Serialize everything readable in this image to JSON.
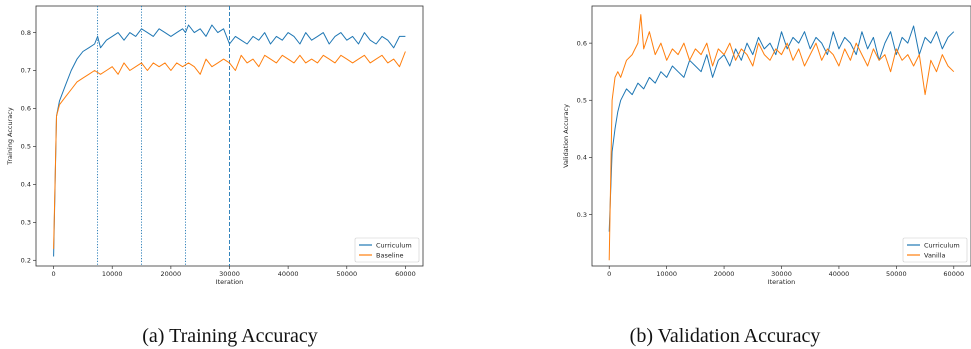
{
  "captions": [
    "(a) Training Accuracy",
    "(b) Validation Accuracy"
  ],
  "colors": {
    "series1": "#1f77b4",
    "series2": "#ff7f0e",
    "vline": "#1f77b4"
  },
  "chart_data": [
    {
      "type": "line",
      "title": "",
      "xlabel": "Iteration",
      "ylabel": "Training Accuracy",
      "xlim": [
        -3000,
        63000
      ],
      "ylim": [
        0.185,
        0.87
      ],
      "xticks": [
        0,
        10000,
        20000,
        30000,
        40000,
        50000,
        60000
      ],
      "yticks": [
        0.2,
        0.3,
        0.4,
        0.5,
        0.6,
        0.7,
        0.8
      ],
      "vlines": [
        7500,
        15000,
        22500,
        30000
      ],
      "grid": false,
      "legend_position": "bottom-right",
      "series": [
        {
          "name": "Curriculum",
          "color": "#1f77b4",
          "x": [
            0,
            500,
            1000,
            2000,
            3000,
            4000,
            5000,
            6000,
            7000,
            7500,
            8000,
            9000,
            10000,
            11000,
            12000,
            13000,
            14000,
            15000,
            16000,
            17000,
            18000,
            19000,
            20000,
            21000,
            22000,
            22500,
            23000,
            24000,
            25000,
            26000,
            27000,
            28000,
            29000,
            30000,
            31000,
            32000,
            33000,
            34000,
            35000,
            36000,
            37000,
            38000,
            39000,
            40000,
            41000,
            42000,
            43000,
            44000,
            45000,
            46000,
            47000,
            48000,
            49000,
            50000,
            51000,
            52000,
            53000,
            54000,
            55000,
            56000,
            57000,
            58000,
            59000,
            60000
          ],
          "y": [
            0.21,
            0.58,
            0.62,
            0.66,
            0.7,
            0.73,
            0.75,
            0.76,
            0.77,
            0.79,
            0.76,
            0.78,
            0.79,
            0.8,
            0.78,
            0.8,
            0.79,
            0.81,
            0.8,
            0.79,
            0.81,
            0.8,
            0.79,
            0.8,
            0.81,
            0.8,
            0.82,
            0.8,
            0.81,
            0.79,
            0.82,
            0.8,
            0.81,
            0.77,
            0.79,
            0.78,
            0.77,
            0.79,
            0.78,
            0.8,
            0.77,
            0.79,
            0.78,
            0.8,
            0.79,
            0.77,
            0.8,
            0.78,
            0.79,
            0.8,
            0.77,
            0.79,
            0.8,
            0.78,
            0.79,
            0.77,
            0.8,
            0.78,
            0.77,
            0.79,
            0.78,
            0.76,
            0.79,
            0.79
          ]
        },
        {
          "name": "Baseline",
          "color": "#ff7f0e",
          "x": [
            0,
            500,
            1000,
            2000,
            3000,
            4000,
            5000,
            6000,
            7000,
            8000,
            9000,
            10000,
            11000,
            12000,
            13000,
            14000,
            15000,
            16000,
            17000,
            18000,
            19000,
            20000,
            21000,
            22000,
            23000,
            24000,
            25000,
            26000,
            27000,
            28000,
            29000,
            30000,
            31000,
            32000,
            33000,
            34000,
            35000,
            36000,
            37000,
            38000,
            39000,
            40000,
            41000,
            42000,
            43000,
            44000,
            45000,
            46000,
            47000,
            48000,
            49000,
            50000,
            51000,
            52000,
            53000,
            54000,
            55000,
            56000,
            57000,
            58000,
            59000,
            60000
          ],
          "y": [
            0.23,
            0.58,
            0.61,
            0.63,
            0.65,
            0.67,
            0.68,
            0.69,
            0.7,
            0.69,
            0.7,
            0.71,
            0.69,
            0.72,
            0.7,
            0.71,
            0.72,
            0.7,
            0.72,
            0.71,
            0.72,
            0.7,
            0.72,
            0.71,
            0.72,
            0.71,
            0.69,
            0.73,
            0.71,
            0.72,
            0.73,
            0.72,
            0.7,
            0.74,
            0.72,
            0.73,
            0.71,
            0.74,
            0.73,
            0.72,
            0.74,
            0.73,
            0.72,
            0.74,
            0.72,
            0.73,
            0.72,
            0.74,
            0.73,
            0.72,
            0.74,
            0.73,
            0.72,
            0.73,
            0.74,
            0.72,
            0.73,
            0.74,
            0.72,
            0.73,
            0.71,
            0.75
          ]
        }
      ]
    },
    {
      "type": "line",
      "title": "",
      "xlabel": "Iteration",
      "ylabel": "Validation Accuracy",
      "xlim": [
        -3000,
        63000
      ],
      "ylim": [
        0.21,
        0.665
      ],
      "xticks": [
        0,
        10000,
        20000,
        30000,
        40000,
        50000,
        60000
      ],
      "yticks": [
        0.3,
        0.4,
        0.5,
        0.6
      ],
      "vlines": [],
      "grid": false,
      "legend_position": "bottom-right",
      "series": [
        {
          "name": "Curriculum",
          "color": "#1f77b4",
          "x": [
            0,
            500,
            1000,
            1500,
            2000,
            3000,
            4000,
            5000,
            6000,
            7000,
            8000,
            9000,
            10000,
            11000,
            12000,
            13000,
            14000,
            15000,
            16000,
            17000,
            18000,
            19000,
            20000,
            21000,
            22000,
            23000,
            24000,
            25000,
            26000,
            27000,
            28000,
            29000,
            30000,
            31000,
            32000,
            33000,
            34000,
            35000,
            36000,
            37000,
            38000,
            39000,
            40000,
            41000,
            42000,
            43000,
            44000,
            45000,
            46000,
            47000,
            48000,
            49000,
            50000,
            51000,
            52000,
            53000,
            54000,
            55000,
            56000,
            57000,
            58000,
            59000,
            60000
          ],
          "y": [
            0.27,
            0.41,
            0.45,
            0.48,
            0.5,
            0.52,
            0.51,
            0.53,
            0.52,
            0.54,
            0.53,
            0.55,
            0.54,
            0.56,
            0.55,
            0.54,
            0.57,
            0.56,
            0.55,
            0.58,
            0.54,
            0.57,
            0.58,
            0.56,
            0.59,
            0.57,
            0.6,
            0.58,
            0.61,
            0.59,
            0.6,
            0.58,
            0.62,
            0.59,
            0.61,
            0.6,
            0.62,
            0.59,
            0.61,
            0.6,
            0.58,
            0.62,
            0.59,
            0.61,
            0.6,
            0.58,
            0.62,
            0.59,
            0.61,
            0.57,
            0.6,
            0.62,
            0.58,
            0.61,
            0.6,
            0.63,
            0.58,
            0.61,
            0.6,
            0.62,
            0.59,
            0.61,
            0.62
          ]
        },
        {
          "name": "Vanilla",
          "color": "#ff7f0e",
          "x": [
            0,
            500,
            1000,
            1500,
            2000,
            3000,
            4000,
            5000,
            5500,
            6000,
            7000,
            8000,
            9000,
            10000,
            11000,
            12000,
            13000,
            14000,
            15000,
            16000,
            17000,
            18000,
            19000,
            20000,
            21000,
            22000,
            23000,
            24000,
            25000,
            26000,
            27000,
            28000,
            29000,
            30000,
            31000,
            32000,
            33000,
            34000,
            35000,
            36000,
            37000,
            38000,
            39000,
            40000,
            41000,
            42000,
            43000,
            44000,
            45000,
            46000,
            47000,
            48000,
            49000,
            50000,
            51000,
            52000,
            53000,
            54000,
            55000,
            56000,
            57000,
            58000,
            59000,
            60000
          ],
          "y": [
            0.22,
            0.5,
            0.54,
            0.55,
            0.54,
            0.57,
            0.58,
            0.6,
            0.65,
            0.59,
            0.62,
            0.58,
            0.6,
            0.57,
            0.59,
            0.58,
            0.6,
            0.57,
            0.59,
            0.58,
            0.6,
            0.56,
            0.59,
            0.58,
            0.6,
            0.57,
            0.59,
            0.58,
            0.56,
            0.6,
            0.58,
            0.57,
            0.59,
            0.58,
            0.6,
            0.57,
            0.59,
            0.56,
            0.58,
            0.6,
            0.57,
            0.59,
            0.58,
            0.56,
            0.59,
            0.57,
            0.6,
            0.58,
            0.56,
            0.59,
            0.57,
            0.58,
            0.55,
            0.59,
            0.57,
            0.58,
            0.56,
            0.58,
            0.51,
            0.57,
            0.55,
            0.58,
            0.56,
            0.55
          ]
        }
      ]
    }
  ]
}
